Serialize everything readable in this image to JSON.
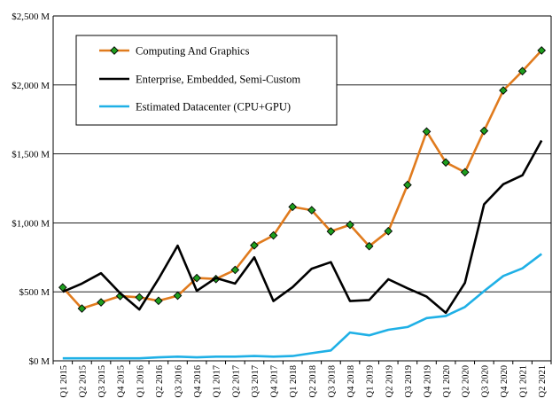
{
  "chart_data": {
    "type": "line",
    "title": "",
    "xlabel": "",
    "ylabel": "",
    "ylim": [
      0,
      2500
    ],
    "yticks": [
      0,
      500,
      1000,
      1500,
      2000,
      2500
    ],
    "ytick_labels": [
      "$0 M",
      "$500 M",
      "$1,000 M",
      "$1,500 M",
      "$2,000 M",
      "$2,500 M"
    ],
    "grid": "horizontal",
    "legend_position": "top-left",
    "categories": [
      "Q1 2015",
      "Q2 2015",
      "Q3 2015",
      "Q4 2015",
      "Q1 2016",
      "Q2 2016",
      "Q3 2016",
      "Q4 2016",
      "Q1 2017",
      "Q2 2017",
      "Q3 2017",
      "Q4 2017",
      "Q1 2018",
      "Q2 2018",
      "Q3 2018",
      "Q4 2018",
      "Q1 2019",
      "Q2 2019",
      "Q3 2019",
      "Q4 2019",
      "Q1 2020",
      "Q2 2020",
      "Q3 2020",
      "Q4 2020",
      "Q1 2021",
      "Q2 2021"
    ],
    "series": [
      {
        "name": "Computing And Graphics",
        "color": "#e07b1e",
        "marker": "diamond",
        "marker_fill": "#1e9e1e",
        "values": [
          532,
          379,
          424,
          470,
          460,
          435,
          472,
          600,
          593,
          659,
          837,
          909,
          1116,
          1092,
          938,
          986,
          831,
          940,
          1275,
          1662,
          1438,
          1367,
          1667,
          1960,
          2100,
          2250
        ]
      },
      {
        "name": "Enterprise, Embedded, Semi-Custom",
        "color": "#000000",
        "marker": "none",
        "values": [
          500,
          560,
          635,
          490,
          372,
          594,
          835,
          507,
          600,
          560,
          750,
          433,
          534,
          668,
          715,
          433,
          441,
          591,
          526,
          465,
          348,
          565,
          1134,
          1280,
          1345,
          1597
        ]
      },
      {
        "name": "Estimated Datacenter (CPU+GPU)",
        "color": "#1fb0e6",
        "marker": "none",
        "values": [
          18,
          18,
          18,
          18,
          18,
          25,
          30,
          25,
          30,
          30,
          35,
          30,
          35,
          55,
          75,
          205,
          185,
          225,
          245,
          310,
          325,
          390,
          505,
          615,
          670,
          775
        ]
      }
    ]
  }
}
